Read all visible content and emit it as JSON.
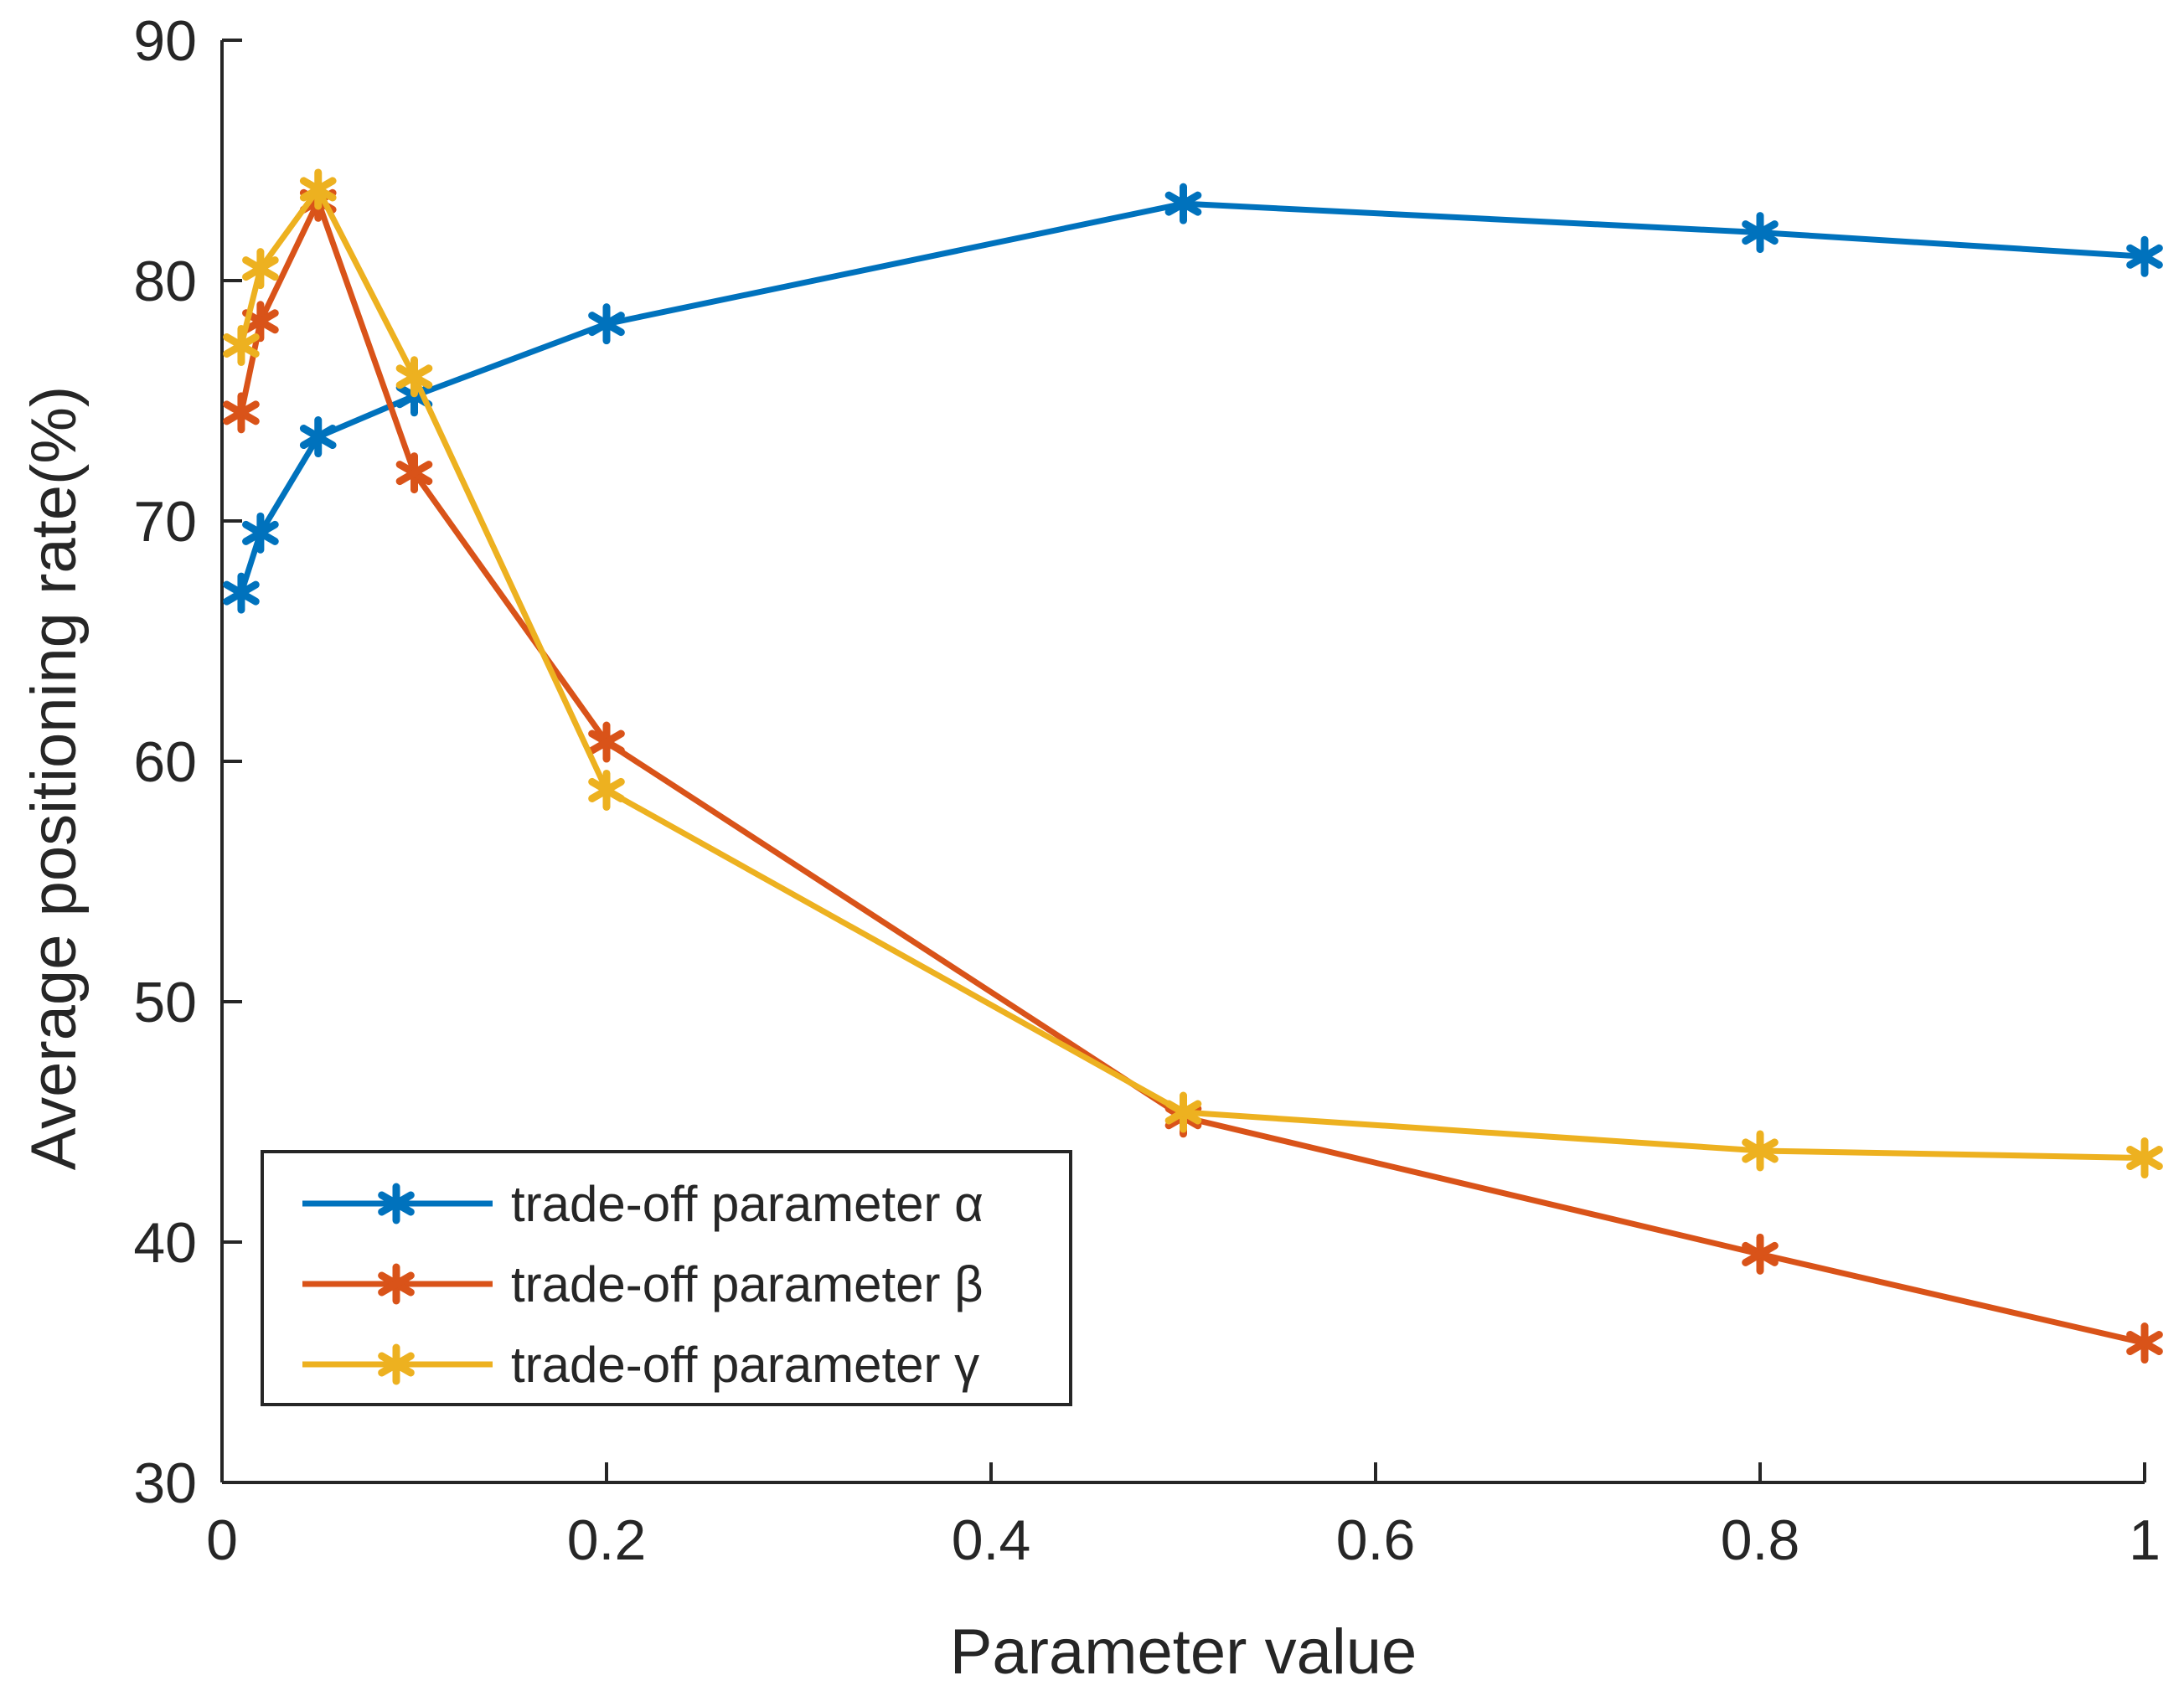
{
  "chart_data": {
    "type": "line",
    "title": "",
    "xlabel": "Parameter value",
    "ylabel": "Average positioning rate(%)",
    "xlim": [
      0,
      1
    ],
    "ylim": [
      30,
      90
    ],
    "xticks": [
      0,
      0.2,
      0.4,
      0.6,
      0.8,
      1
    ],
    "xtick_labels": [
      "0",
      "0.2",
      "0.4",
      "0.6",
      "0.8",
      "1"
    ],
    "yticks": [
      30,
      40,
      50,
      60,
      70,
      80,
      90
    ],
    "ytick_labels": [
      "30",
      "40",
      "50",
      "60",
      "70",
      "80",
      "90"
    ],
    "grid": false,
    "legend_position": "bottom-left",
    "x": [
      0.01,
      0.02,
      0.05,
      0.1,
      0.2,
      0.5,
      0.8,
      1
    ],
    "series": [
      {
        "name": "trade-off parameter α",
        "color": "#0072BD",
        "marker": "asterisk",
        "values": [
          67.0,
          69.5,
          73.5,
          75.2,
          78.2,
          83.2,
          82.0,
          81.0
        ]
      },
      {
        "name": "trade-off parameter β",
        "color": "#D95319",
        "marker": "asterisk",
        "values": [
          74.5,
          78.3,
          83.3,
          72.0,
          60.8,
          45.2,
          39.5,
          35.8
        ]
      },
      {
        "name": "trade-off parameter γ",
        "color": "#EDB120",
        "marker": "asterisk",
        "values": [
          77.3,
          80.5,
          83.8,
          76.0,
          58.8,
          45.4,
          43.8,
          43.5
        ]
      }
    ]
  }
}
